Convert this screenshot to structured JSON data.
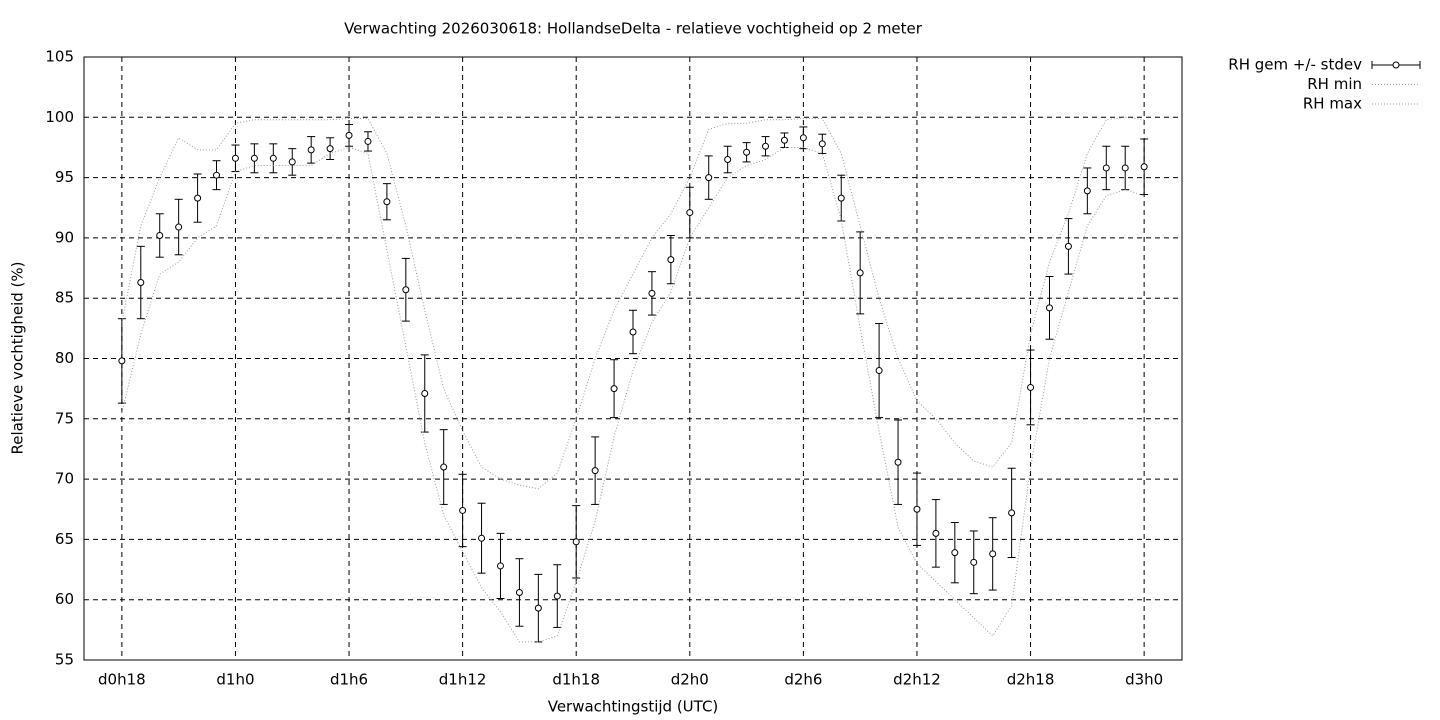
{
  "chart_data": {
    "type": "errorbar-line",
    "title": "Verwachting 2026030618: HollandseDelta - relatieve vochtigheid op 2 meter",
    "xlabel": "Verwachtingstijd (UTC)",
    "ylabel": "Relatieve vochtigheid (%)",
    "x": [
      18,
      19,
      20,
      21,
      22,
      23,
      24,
      25,
      26,
      27,
      28,
      29,
      30,
      31,
      32,
      33,
      34,
      35,
      36,
      37,
      38,
      39,
      40,
      41,
      42,
      43,
      44,
      45,
      46,
      47,
      48,
      49,
      50,
      51,
      52,
      53,
      54,
      55,
      56,
      57,
      58,
      59,
      60,
      61,
      62,
      63,
      64,
      65,
      66,
      67,
      68,
      69,
      70,
      71,
      72
    ],
    "series": [
      {
        "name": "RH gem +/- stdev",
        "color": "#000000",
        "values": [
          79.8,
          86.3,
          90.2,
          90.9,
          93.3,
          95.2,
          96.6,
          96.6,
          96.6,
          96.3,
          97.3,
          97.4,
          98.5,
          98.0,
          93.0,
          85.7,
          77.1,
          71.0,
          67.4,
          65.1,
          62.8,
          60.6,
          59.3,
          60.3,
          64.8,
          70.7,
          77.5,
          82.2,
          85.4,
          88.2,
          92.1,
          95.0,
          96.5,
          97.1,
          97.6,
          98.1,
          98.3,
          97.8,
          93.3,
          87.1,
          79.0,
          71.4,
          67.5,
          65.5,
          63.9,
          63.1,
          63.8,
          67.2,
          77.6,
          84.2,
          89.3,
          93.9,
          95.8,
          95.8,
          95.9
        ],
        "errors": [
          3.5,
          3.0,
          1.8,
          2.3,
          2.0,
          1.2,
          1.1,
          1.2,
          1.2,
          1.1,
          1.1,
          0.9,
          0.9,
          0.8,
          1.5,
          2.6,
          3.2,
          3.1,
          3.0,
          2.9,
          2.7,
          2.8,
          2.8,
          2.6,
          3.0,
          2.8,
          2.4,
          1.8,
          1.8,
          2.0,
          2.1,
          1.8,
          1.1,
          0.8,
          0.8,
          0.6,
          0.9,
          0.8,
          1.9,
          3.4,
          3.9,
          3.5,
          3.0,
          2.8,
          2.5,
          2.6,
          3.0,
          3.7,
          3.1,
          2.6,
          2.3,
          1.9,
          1.8,
          1.8,
          2.3
        ]
      },
      {
        "name": "RH min",
        "color": "#9a9a9a",
        "values": [
          75.5,
          82,
          87,
          88,
          90,
          91,
          95.5,
          96,
          96,
          96,
          96,
          97,
          97.5,
          97,
          89,
          81,
          73,
          67,
          64,
          61,
          59,
          56.5,
          56.5,
          57,
          61.5,
          66.5,
          73.5,
          79,
          83,
          85.5,
          90,
          92.5,
          95,
          96,
          96.5,
          97.5,
          97.5,
          97,
          91.5,
          82.5,
          74,
          66,
          63,
          61.5,
          60,
          58.5,
          57,
          59.5,
          71,
          80,
          85.5,
          91,
          93.5,
          94,
          93.5
        ]
      },
      {
        "name": "RH max",
        "color": "#9a9a9a",
        "values": [
          83,
          91,
          95,
          98.3,
          97.3,
          97.3,
          99.5,
          99.8,
          99.8,
          99.8,
          99.8,
          99.8,
          99.9,
          99.9,
          97,
          91,
          84,
          77.5,
          74,
          71,
          70,
          69.5,
          69.2,
          70.5,
          75,
          80,
          84,
          87,
          90,
          92,
          95,
          99,
          99.5,
          99.5,
          99.8,
          99.8,
          99.9,
          99.9,
          97,
          91,
          85,
          80,
          76.5,
          75,
          73,
          71.5,
          71,
          73,
          82,
          88,
          92,
          97,
          99.8,
          100,
          99.8
        ]
      }
    ],
    "xlim": [
      16,
      74
    ],
    "xticks": [
      {
        "value": 18,
        "label": "d0h18"
      },
      {
        "value": 24,
        "label": "d1h0"
      },
      {
        "value": 30,
        "label": "d1h6"
      },
      {
        "value": 36,
        "label": "d1h12"
      },
      {
        "value": 42,
        "label": "d1h18"
      },
      {
        "value": 48,
        "label": "d2h0"
      },
      {
        "value": 54,
        "label": "d2h6"
      },
      {
        "value": 60,
        "label": "d2h12"
      },
      {
        "value": 66,
        "label": "d2h18"
      },
      {
        "value": 72,
        "label": "d3h0"
      }
    ],
    "ylim": [
      55,
      105
    ],
    "yticks": [
      55,
      60,
      65,
      70,
      75,
      80,
      85,
      90,
      95,
      100,
      105
    ],
    "grid": true,
    "legend": "outside-right"
  }
}
